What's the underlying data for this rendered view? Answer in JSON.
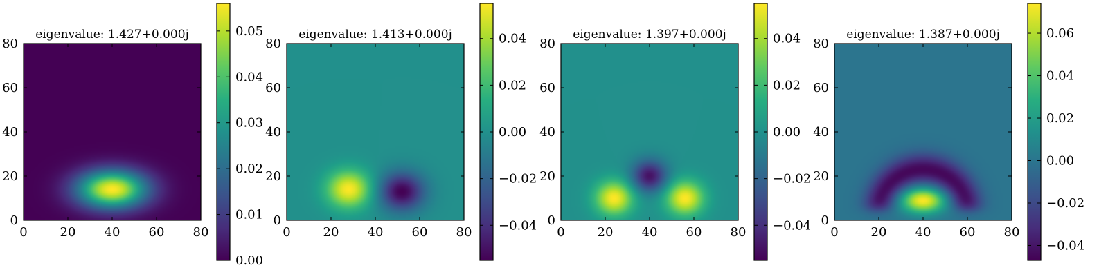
{
  "chart_data": [
    {
      "type": "heatmap",
      "title": "eigenvalue: 1.427+0.000j",
      "xlim": [
        0,
        80
      ],
      "ylim": [
        0,
        80
      ],
      "xticks": [
        "0",
        "20",
        "40",
        "60",
        "80"
      ],
      "yticks": [
        "0",
        "20",
        "40",
        "60",
        "80"
      ],
      "colormap": "viridis",
      "colorbar": {
        "min": 0.0,
        "max": 0.056,
        "ticks": [
          "0.00",
          "0.01",
          "0.02",
          "0.03",
          "0.04",
          "0.05"
        ],
        "tick_values": [
          0.0,
          0.01,
          0.02,
          0.03,
          0.04,
          0.05
        ]
      },
      "field_shape": "single lobe",
      "lobes": [
        {
          "x": 40,
          "y": 14,
          "sx": 11,
          "sy": 6,
          "amp": 0.056
        }
      ]
    },
    {
      "type": "heatmap",
      "title": "eigenvalue: 1.413+0.000j",
      "xlim": [
        0,
        80
      ],
      "ylim": [
        0,
        80
      ],
      "xticks": [
        "0",
        "20",
        "40",
        "60",
        "80"
      ],
      "yticks": [
        "0",
        "20",
        "40",
        "60",
        "80"
      ],
      "colormap": "viridis",
      "colorbar": {
        "min": -0.055,
        "max": 0.055,
        "ticks": [
          "0.04",
          "0.02",
          "0.00",
          "−0.02",
          "−0.04"
        ],
        "tick_values": [
          0.04,
          0.02,
          0.0,
          -0.02,
          -0.04
        ]
      },
      "field_shape": "two lobes",
      "lobes": [
        {
          "x": 28,
          "y": 14,
          "sx": 7,
          "sy": 6,
          "amp": 0.055
        },
        {
          "x": 52,
          "y": 13,
          "sx": 7,
          "sy": 6,
          "amp": -0.055
        }
      ]
    },
    {
      "type": "heatmap",
      "title": "eigenvalue: 1.397+0.000j",
      "xlim": [
        0,
        80
      ],
      "ylim": [
        0,
        80
      ],
      "xticks": [
        "0",
        "20",
        "40",
        "60",
        "80"
      ],
      "yticks": [
        "0",
        "20",
        "40",
        "60",
        "80"
      ],
      "colormap": "viridis",
      "colorbar": {
        "min": -0.055,
        "max": 0.055,
        "ticks": [
          "0.04",
          "0.02",
          "0.00",
          "−0.02",
          "−0.04"
        ],
        "tick_values": [
          0.04,
          0.02,
          0.0,
          -0.02,
          -0.04
        ]
      },
      "field_shape": "three lobes",
      "lobes": [
        {
          "x": 24,
          "y": 10,
          "sx": 6,
          "sy": 5.5,
          "amp": 0.055
        },
        {
          "x": 56,
          "y": 10,
          "sx": 6,
          "sy": 5.5,
          "amp": 0.055
        },
        {
          "x": 40,
          "y": 20,
          "sx": 5.5,
          "sy": 5,
          "amp": -0.05
        }
      ]
    },
    {
      "type": "heatmap",
      "title": "eigenvalue: 1.387+0.000j",
      "xlim": [
        0,
        80
      ],
      "ylim": [
        0,
        80
      ],
      "xticks": [
        "0",
        "20",
        "40",
        "60",
        "80"
      ],
      "yticks": [
        "0",
        "20",
        "40",
        "60",
        "80"
      ],
      "colormap": "viridis",
      "colorbar": {
        "min": -0.047,
        "max": 0.074,
        "ticks": [
          "0.06",
          "0.04",
          "0.02",
          "0.00",
          "−0.02",
          "−0.04"
        ],
        "tick_values": [
          0.06,
          0.04,
          0.02,
          0.0,
          -0.02,
          -0.04
        ]
      },
      "field_shape": "lobe with arc",
      "lobes": [
        {
          "x": 40,
          "y": 9,
          "sx": 7,
          "sy": 4,
          "amp": 0.074
        }
      ],
      "ring": {
        "x": 40,
        "y": 3,
        "r": 20,
        "width": 5,
        "amp": -0.045,
        "mask_below": 5
      }
    }
  ]
}
